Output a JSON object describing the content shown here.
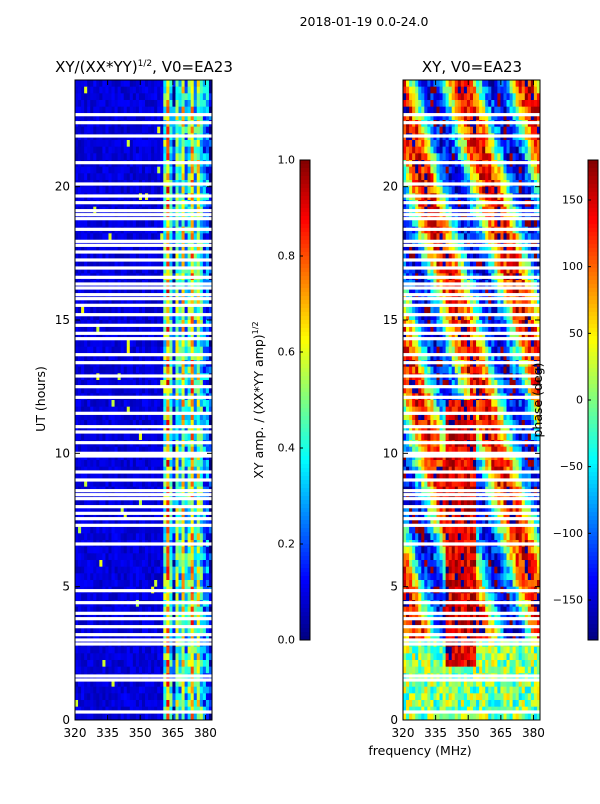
{
  "figure": {
    "suptitle": "2018-01-19 0.0-24.0",
    "shared_xlabel": "frequency (MHz)"
  },
  "chart_data": [
    {
      "type": "heatmap",
      "title_main": "XY/(XX*YY)",
      "title_sup": "1/2",
      "title_rest": ", V0=EA23",
      "xlabel": "",
      "ylabel": "UT (hours)",
      "xlim": [
        320,
        383
      ],
      "ylim": [
        0,
        24
      ],
      "xticks": [
        320,
        335,
        350,
        365,
        380
      ],
      "yticks": [
        0,
        5,
        10,
        15,
        20
      ],
      "colorbar": {
        "label_main": "XY amp. / (XX*YY amp)",
        "label_sup": "1/2",
        "range": [
          0.0,
          1.0
        ],
        "ticks": [
          "0.0",
          "0.2",
          "0.4",
          "0.6",
          "0.8",
          "1.0"
        ],
        "tick_values": [
          0.0,
          0.2,
          0.4,
          0.6,
          0.8,
          1.0
        ]
      },
      "description": "Low values (~0.0-0.1) for 320-361 MHz; high-amplitude vertical bands (0.3-0.9) at ~361-380 MHz",
      "bands": [
        {
          "x0": 320,
          "x1": 361,
          "value": 0.05
        },
        {
          "x0": 361,
          "x1": 362.5,
          "value": 0.45
        },
        {
          "x0": 362.5,
          "x1": 363.5,
          "value": 0.75
        },
        {
          "x0": 363.5,
          "x1": 365,
          "value": 0.4
        },
        {
          "x0": 365,
          "x1": 366,
          "value": 0.15
        },
        {
          "x0": 366,
          "x1": 367.5,
          "value": 0.5
        },
        {
          "x0": 367.5,
          "x1": 369,
          "value": 0.35
        },
        {
          "x0": 369,
          "x1": 370.5,
          "value": 0.6
        },
        {
          "x0": 370.5,
          "x1": 372,
          "value": 0.3
        },
        {
          "x0": 372,
          "x1": 373.5,
          "value": 0.45
        },
        {
          "x0": 373.5,
          "x1": 375,
          "value": 0.7
        },
        {
          "x0": 375,
          "x1": 376.5,
          "value": 0.35
        },
        {
          "x0": 376.5,
          "x1": 378,
          "value": 0.55
        },
        {
          "x0": 378,
          "x1": 379.5,
          "value": 0.4
        },
        {
          "x0": 379.5,
          "x1": 381,
          "value": 0.25
        },
        {
          "x0": 381,
          "x1": 383,
          "value": 0.1
        }
      ]
    },
    {
      "type": "heatmap",
      "title_main": "XY, V0=EA23",
      "title_sup": "",
      "title_rest": "",
      "xlabel": "frequency (MHz)",
      "ylabel": "",
      "xlim": [
        320,
        383
      ],
      "ylim": [
        0,
        24
      ],
      "xticks": [
        320,
        335,
        350,
        365,
        380
      ],
      "yticks": [
        0,
        5,
        10,
        15,
        20
      ],
      "colorbar": {
        "label_main": "phase (deg)",
        "label_sup": "",
        "range": [
          -180,
          180
        ],
        "ticks": [
          "−150",
          "−100",
          "−50",
          "0",
          "50",
          "100",
          "150"
        ],
        "tick_values": [
          -150,
          -100,
          -50,
          0,
          50,
          100,
          150
        ]
      },
      "description": "Noisy phase pattern; persistent ~+150 deg ridge near 340-352 MHz between 2 and 12 UT, mixed phases elsewhere"
    }
  ],
  "flagged_hours": [
    0.3,
    1.5,
    1.65,
    2.85,
    3.0,
    3.2,
    3.5,
    3.8,
    4.0,
    4.4,
    4.85,
    6.6,
    7.3,
    7.55,
    7.75,
    8.0,
    8.3,
    8.45,
    8.6,
    9.0,
    9.3,
    9.9,
    10.0,
    10.4,
    10.8,
    11.0,
    11.5,
    12.1,
    12.5,
    12.9,
    13.4,
    13.7,
    14.3,
    14.5,
    14.8,
    15.2,
    15.55,
    15.8,
    15.95,
    16.2,
    16.35,
    16.6,
    16.95,
    17.25,
    17.55,
    17.8,
    17.95,
    18.4,
    18.8,
    18.95,
    19.1,
    19.4,
    19.65,
    20.1,
    20.9,
    21.9,
    22.4,
    22.7
  ]
}
